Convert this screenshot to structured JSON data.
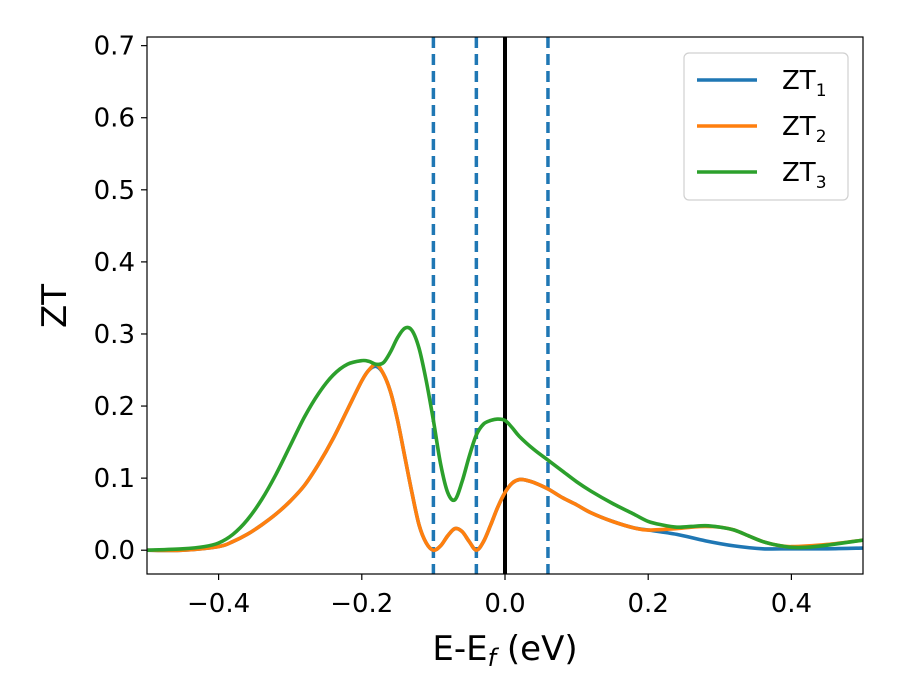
{
  "chart_data": {
    "type": "line",
    "xlabel": "E-E",
    "xlabel_subscript": "f",
    "xlabel_unit": " (eV)",
    "ylabel": "ZT",
    "xlim": [
      -0.5,
      0.5
    ],
    "ylim": [
      -0.033,
      0.712
    ],
    "xticks": [
      -0.4,
      -0.2,
      0.0,
      0.2,
      0.4
    ],
    "xtick_labels": [
      "−0.4",
      "−0.2",
      "0.0",
      "0.2",
      "0.4"
    ],
    "yticks": [
      0.0,
      0.1,
      0.2,
      0.3,
      0.4,
      0.5,
      0.6,
      0.7
    ],
    "ytick_labels": [
      "0.0",
      "0.1",
      "0.2",
      "0.3",
      "0.4",
      "0.5",
      "0.6",
      "0.7"
    ],
    "grid": false,
    "legend_position": "top-right",
    "vertical_lines": [
      {
        "x": -0.1,
        "style": "dashed",
        "color": "#1f77b4"
      },
      {
        "x": -0.04,
        "style": "dashed",
        "color": "#1f77b4"
      },
      {
        "x": 0.06,
        "style": "dashed",
        "color": "#1f77b4"
      },
      {
        "x": 0.0,
        "style": "solid",
        "color": "#000000"
      }
    ],
    "series": [
      {
        "name": "ZT",
        "subscript": "1",
        "color": "#1f77b4",
        "x": [
          -0.5,
          -0.45,
          -0.4,
          -0.38,
          -0.36,
          -0.34,
          -0.32,
          -0.3,
          -0.28,
          -0.26,
          -0.24,
          -0.22,
          -0.2,
          -0.19,
          -0.18,
          -0.17,
          -0.16,
          -0.15,
          -0.14,
          -0.13,
          -0.12,
          -0.11,
          -0.1,
          -0.09,
          -0.08,
          -0.07,
          -0.06,
          -0.05,
          -0.04,
          -0.03,
          -0.02,
          -0.01,
          0.0,
          0.01,
          0.02,
          0.03,
          0.04,
          0.06,
          0.08,
          0.1,
          0.12,
          0.15,
          0.18,
          0.2,
          0.24,
          0.28,
          0.32,
          0.36,
          0.4,
          0.45,
          0.5
        ],
        "y": [
          0.0,
          0.0,
          0.005,
          0.012,
          0.022,
          0.035,
          0.05,
          0.068,
          0.09,
          0.12,
          0.155,
          0.195,
          0.235,
          0.25,
          0.255,
          0.245,
          0.22,
          0.18,
          0.13,
          0.08,
          0.035,
          0.01,
          0.0,
          0.006,
          0.02,
          0.03,
          0.026,
          0.012,
          0.0,
          0.012,
          0.035,
          0.06,
          0.08,
          0.093,
          0.098,
          0.097,
          0.094,
          0.085,
          0.073,
          0.063,
          0.052,
          0.04,
          0.031,
          0.028,
          0.022,
          0.013,
          0.006,
          0.002,
          0.002,
          0.002,
          0.003
        ]
      },
      {
        "name": "ZT",
        "subscript": "2",
        "color": "#ff7f0e",
        "x": [
          -0.5,
          -0.45,
          -0.4,
          -0.38,
          -0.36,
          -0.34,
          -0.32,
          -0.3,
          -0.28,
          -0.26,
          -0.24,
          -0.22,
          -0.2,
          -0.19,
          -0.18,
          -0.17,
          -0.16,
          -0.15,
          -0.14,
          -0.13,
          -0.12,
          -0.11,
          -0.1,
          -0.09,
          -0.08,
          -0.07,
          -0.06,
          -0.05,
          -0.04,
          -0.03,
          -0.02,
          -0.01,
          0.0,
          0.01,
          0.02,
          0.03,
          0.04,
          0.06,
          0.08,
          0.1,
          0.12,
          0.15,
          0.18,
          0.2,
          0.24,
          0.26,
          0.28,
          0.3,
          0.32,
          0.34,
          0.36,
          0.38,
          0.4,
          0.45,
          0.5
        ],
        "y": [
          0.0,
          0.0,
          0.005,
          0.012,
          0.022,
          0.035,
          0.05,
          0.068,
          0.09,
          0.12,
          0.155,
          0.195,
          0.235,
          0.25,
          0.258,
          0.245,
          0.22,
          0.18,
          0.13,
          0.08,
          0.035,
          0.01,
          0.0,
          0.006,
          0.02,
          0.03,
          0.026,
          0.012,
          0.0,
          0.012,
          0.035,
          0.06,
          0.08,
          0.093,
          0.098,
          0.097,
          0.094,
          0.085,
          0.073,
          0.063,
          0.052,
          0.04,
          0.031,
          0.028,
          0.03,
          0.032,
          0.033,
          0.032,
          0.028,
          0.02,
          0.012,
          0.007,
          0.005,
          0.008,
          0.014
        ]
      },
      {
        "name": "ZT",
        "subscript": "3",
        "color": "#2ca02c",
        "x": [
          -0.5,
          -0.45,
          -0.42,
          -0.4,
          -0.38,
          -0.36,
          -0.34,
          -0.32,
          -0.3,
          -0.28,
          -0.26,
          -0.24,
          -0.22,
          -0.2,
          -0.19,
          -0.18,
          -0.17,
          -0.16,
          -0.15,
          -0.14,
          -0.13,
          -0.12,
          -0.11,
          -0.1,
          -0.09,
          -0.08,
          -0.07,
          -0.06,
          -0.05,
          -0.04,
          -0.03,
          -0.02,
          -0.01,
          0.0,
          0.01,
          0.02,
          0.04,
          0.06,
          0.08,
          0.1,
          0.12,
          0.15,
          0.18,
          0.2,
          0.22,
          0.24,
          0.26,
          0.28,
          0.3,
          0.32,
          0.34,
          0.36,
          0.38,
          0.4,
          0.42,
          0.45,
          0.5
        ],
        "y": [
          0.0,
          0.002,
          0.005,
          0.01,
          0.022,
          0.042,
          0.07,
          0.105,
          0.145,
          0.185,
          0.218,
          0.243,
          0.258,
          0.263,
          0.262,
          0.258,
          0.26,
          0.275,
          0.295,
          0.308,
          0.305,
          0.28,
          0.235,
          0.18,
          0.12,
          0.08,
          0.07,
          0.095,
          0.13,
          0.16,
          0.175,
          0.18,
          0.182,
          0.18,
          0.17,
          0.158,
          0.14,
          0.125,
          0.11,
          0.095,
          0.082,
          0.065,
          0.05,
          0.04,
          0.035,
          0.032,
          0.033,
          0.034,
          0.032,
          0.028,
          0.02,
          0.012,
          0.007,
          0.004,
          0.004,
          0.007,
          0.014
        ]
      }
    ]
  }
}
